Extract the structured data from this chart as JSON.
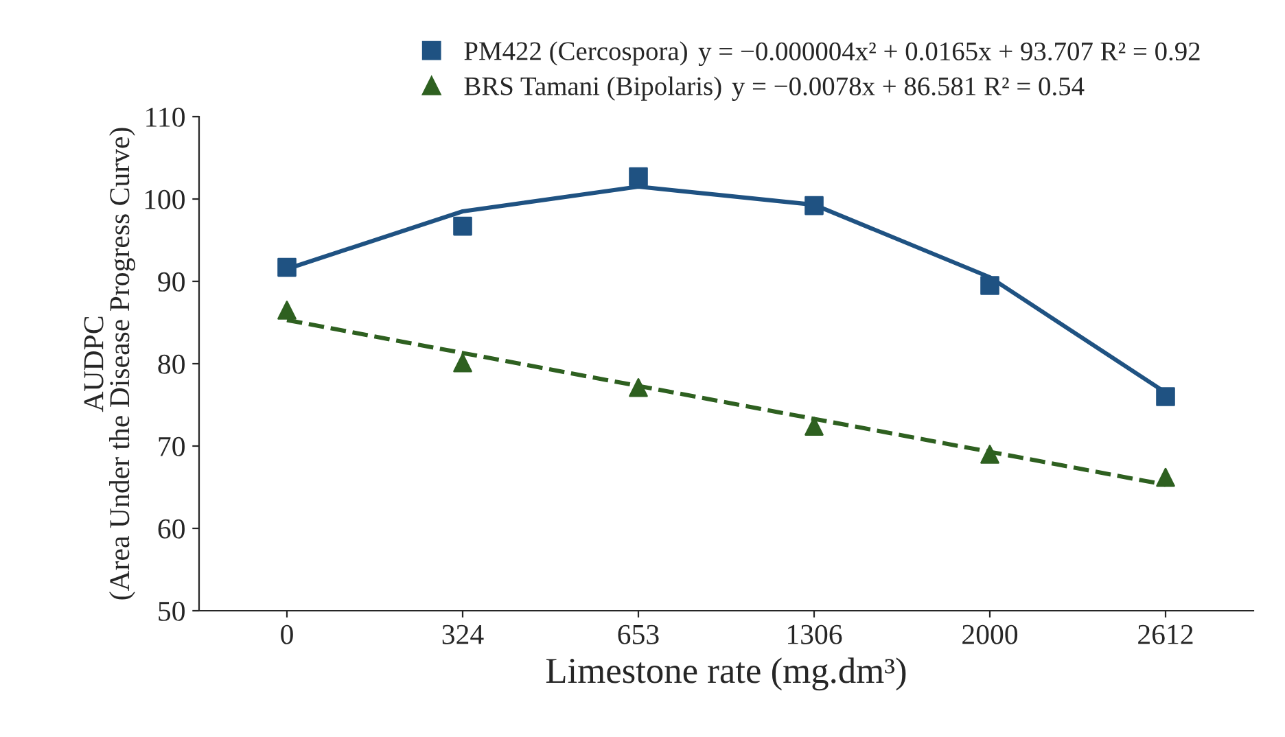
{
  "chart_data": {
    "type": "scatter",
    "xlabel": "Limestone rate (mg.dm³)",
    "ylabel": "AUDPC\n(Area Under the Disease Progress Curve)",
    "categories": [
      "0",
      "324",
      "653",
      "1306",
      "2000",
      "2612"
    ],
    "ylim": [
      50,
      110
    ],
    "yticks": [
      50,
      60,
      70,
      80,
      90,
      100,
      110
    ],
    "grid": false,
    "legend": "top",
    "series": [
      {
        "name": "PM422 (Cercospora)",
        "color": "#1f5282",
        "marker": "square",
        "values": [
          91.7,
          96.7,
          102.7,
          99.2,
          89.5,
          76.0
        ]
      },
      {
        "name": "BRS Tamani (Bipolaris)",
        "color": "#2e6020",
        "marker": "triangle",
        "values": [
          86.5,
          80.1,
          77.1,
          72.4,
          69.0,
          66.2
        ]
      },
      {
        "type": "line",
        "color": "#1f5282",
        "line_style": "solid",
        "values": [
          91.5,
          98.5,
          101.5,
          99.3,
          90.5,
          76.5
        ]
      },
      {
        "type": "line",
        "color": "#2e6020",
        "line_style": "dashed",
        "values": [
          85.3,
          81.3,
          77.3,
          73.3,
          69.3,
          65.3
        ]
      }
    ],
    "annotations": [
      "y = −0.000004x² + 0.0165x + 93.707 R² = 0.92",
      "y = −0.0078x + 86.581 R² = 0.54"
    ]
  }
}
